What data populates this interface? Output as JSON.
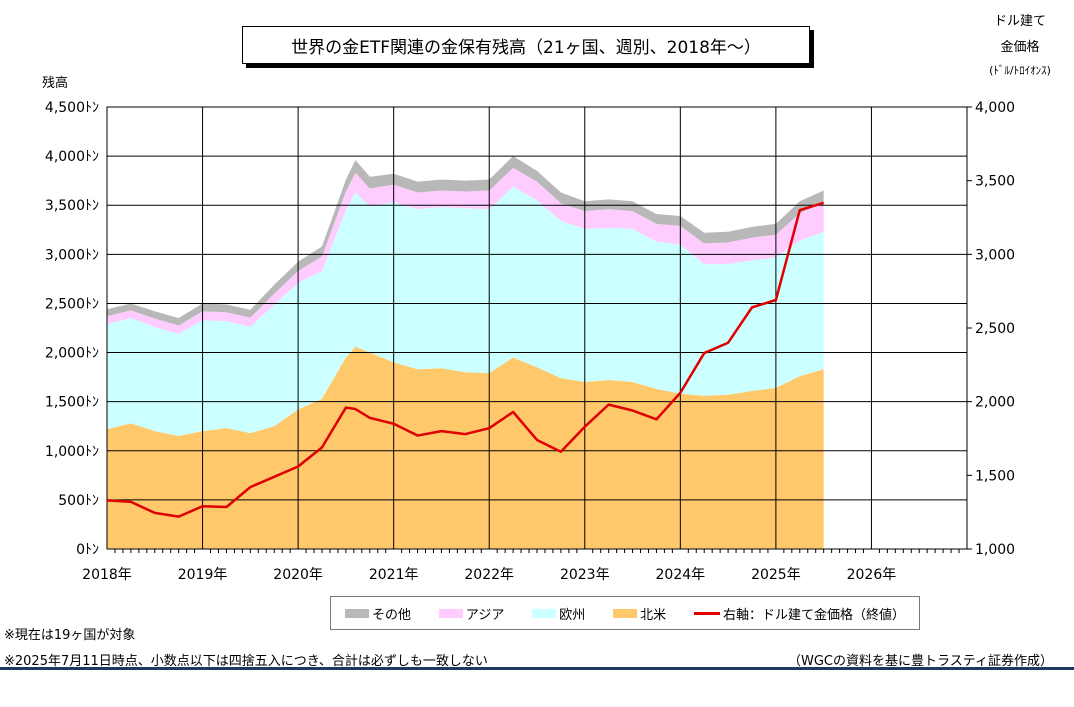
{
  "title": "世界の金ETF関連の金保有残高（21ヶ国、週別、2018年～）",
  "left_axis_label": "残高",
  "right_axis_label_lines": [
    "ドル建て",
    "金価格",
    "(ﾄﾞﾙ/ﾄﾛｲｵﾝｽ)"
  ],
  "notes": [
    "※現在は19ヶ国が対象",
    "※2025年7月11日時点、小数点以下は四捨五入につき、合計は必ずしも一致しない"
  ],
  "source": "（WGCの資料を基に豊トラスティ証券作成）",
  "colors": {
    "other": "#b8b8b8",
    "asia": "#ffccff",
    "europe": "#ccffff",
    "north_america": "#ffc96b",
    "gold_price": "#e00000",
    "grid": "#000000",
    "footer_bar": "#1f3864"
  },
  "chart_data": {
    "type": "area",
    "stacked": true,
    "x_unit": "year",
    "xlim": [
      2018,
      2027
    ],
    "x_tick_labels": [
      "2018年",
      "2019年",
      "2020年",
      "2021年",
      "2022年",
      "2023年",
      "2024年",
      "2025年",
      "2026年"
    ],
    "y_left_lim": [
      0,
      4500
    ],
    "y_left_tick_labels": [
      "0ﾄﾝ",
      "500ﾄﾝ",
      "1,000ﾄﾝ",
      "1,500ﾄﾝ",
      "2,000ﾄﾝ",
      "2,500ﾄﾝ",
      "3,000ﾄﾝ",
      "3,500ﾄﾝ",
      "4,000ﾄﾝ",
      "4,500ﾄﾝ"
    ],
    "y_right_lim": [
      1000,
      4000
    ],
    "y_right_tick_labels": [
      "1,000",
      "1,500",
      "2,000",
      "2,500",
      "3,000",
      "3,500",
      "4,000"
    ],
    "grid": true,
    "legend_position": "bottom",
    "x": [
      2018.0,
      2018.25,
      2018.5,
      2018.75,
      2019.0,
      2019.25,
      2019.5,
      2019.75,
      2020.0,
      2020.25,
      2020.5,
      2020.6,
      2020.75,
      2021.0,
      2021.25,
      2021.5,
      2021.75,
      2022.0,
      2022.25,
      2022.5,
      2022.75,
      2023.0,
      2023.25,
      2023.5,
      2023.75,
      2024.0,
      2024.25,
      2024.5,
      2024.75,
      2025.0,
      2025.25,
      2025.5
    ],
    "series": [
      {
        "name": "北米",
        "axis": "left",
        "values": [
          1220,
          1280,
          1200,
          1150,
          1200,
          1230,
          1180,
          1250,
          1420,
          1530,
          1950,
          2060,
          2000,
          1900,
          1830,
          1840,
          1800,
          1790,
          1950,
          1850,
          1740,
          1700,
          1720,
          1700,
          1630,
          1580,
          1560,
          1570,
          1610,
          1640,
          1760,
          1830
        ]
      },
      {
        "name": "欧州",
        "axis": "left",
        "values": [
          1070,
          1070,
          1060,
          1040,
          1130,
          1090,
          1080,
          1240,
          1290,
          1300,
          1500,
          1570,
          1490,
          1630,
          1630,
          1640,
          1670,
          1670,
          1740,
          1700,
          1600,
          1560,
          1550,
          1560,
          1500,
          1520,
          1340,
          1330,
          1330,
          1330,
          1380,
          1400
        ]
      },
      {
        "name": "アジア",
        "axis": "left",
        "values": [
          80,
          80,
          85,
          85,
          90,
          90,
          95,
          110,
          120,
          150,
          190,
          200,
          180,
          180,
          170,
          170,
          170,
          190,
          190,
          190,
          180,
          180,
          190,
          180,
          180,
          190,
          210,
          220,
          230,
          230,
          280,
          300
        ]
      },
      {
        "name": "その他",
        "axis": "left",
        "values": [
          70,
          70,
          75,
          75,
          80,
          80,
          80,
          90,
          95,
          100,
          120,
          130,
          120,
          110,
          110,
          110,
          110,
          110,
          120,
          110,
          110,
          100,
          100,
          100,
          100,
          100,
          110,
          110,
          110,
          110,
          120,
          120
        ]
      },
      {
        "name": "右軸：ドル建て金価格（終値）",
        "axis": "right",
        "values": [
          1330,
          1320,
          1245,
          1220,
          1290,
          1285,
          1420,
          1490,
          1560,
          1690,
          1960,
          1950,
          1890,
          1850,
          1770,
          1800,
          1780,
          1820,
          1930,
          1740,
          1660,
          1830,
          1980,
          1940,
          1880,
          2060,
          2330,
          2400,
          2640,
          2690,
          3300,
          3350
        ]
      }
    ]
  }
}
